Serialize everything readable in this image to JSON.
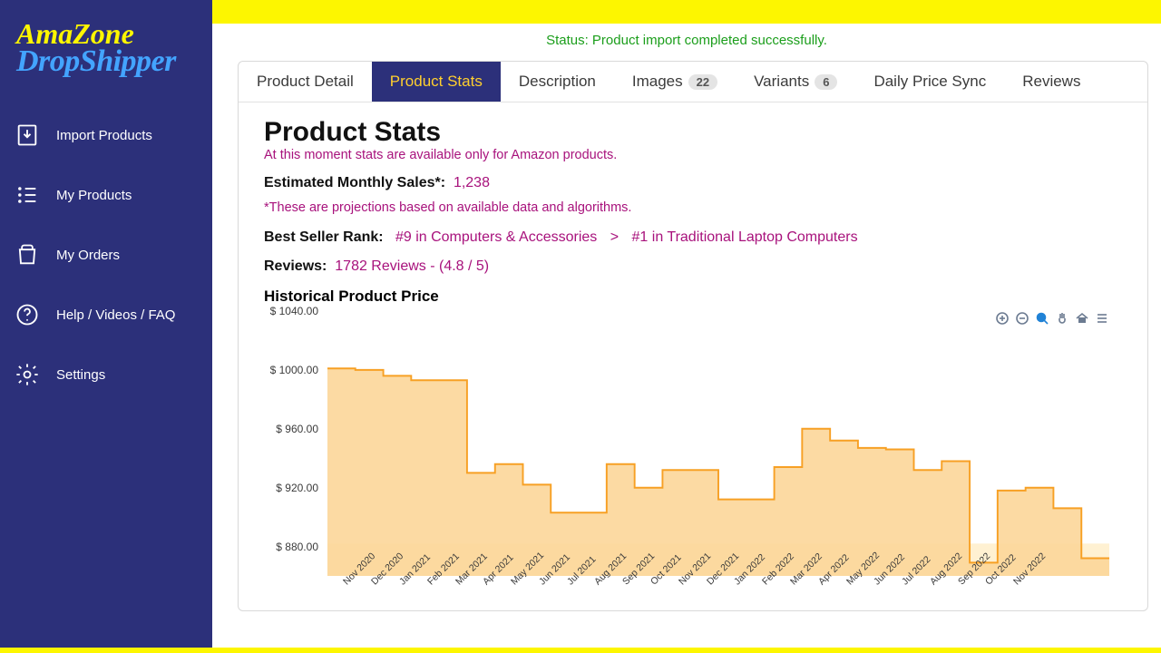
{
  "logo": {
    "line1": "AmaZone",
    "line2": "DropShipper"
  },
  "topright": "",
  "sidebar": {
    "items": [
      {
        "label": "Import Products",
        "icon": "import"
      },
      {
        "label": "My Products",
        "icon": "products"
      },
      {
        "label": "My Orders",
        "icon": "orders"
      },
      {
        "label": "Help / Videos / FAQ",
        "icon": "help"
      },
      {
        "label": "Settings",
        "icon": "settings"
      }
    ]
  },
  "status": "Status: Product import completed successfully.",
  "tabs": [
    {
      "label": "Product Detail",
      "badge": null,
      "active": false
    },
    {
      "label": "Product Stats",
      "badge": null,
      "active": true
    },
    {
      "label": "Description",
      "badge": null,
      "active": false
    },
    {
      "label": "Images",
      "badge": "22",
      "active": false
    },
    {
      "label": "Variants",
      "badge": "6",
      "active": false
    },
    {
      "label": "Daily Price Sync",
      "badge": null,
      "active": false
    },
    {
      "label": "Reviews",
      "badge": null,
      "active": false
    }
  ],
  "stats": {
    "title": "Product Stats",
    "note": "At this moment stats are available only for Amazon products.",
    "monthly_label": "Estimated Monthly Sales*:",
    "monthly_value": "1,238",
    "monthly_footnote": "*These are projections based on available data and algorithms.",
    "rank_label": "Best Seller Rank:",
    "rank_links": [
      "#9 in Computers & Accessories",
      "#1 in Traditional Laptop Computers"
    ],
    "reviews_label": "Reviews:",
    "reviews_value": "1782 Reviews - (4.8 / 5)",
    "chart_title": "Historical Product Price"
  },
  "chart": {
    "type": "area-step",
    "stroke_color": "#f7a024",
    "fill_color": "#fcd699",
    "fill_opacity": 0.9,
    "ground_fill": "#fff1d2",
    "stroke_width": 2,
    "ylim": [
      860,
      1040
    ],
    "ytick_step": 40,
    "y_prefix": "$ ",
    "y_decimals": 2,
    "categories": [
      "Nov 2020",
      "Dec 2020",
      "Jan 2021",
      "Feb 2021",
      "Mar 2021",
      "Apr 2021",
      "May 2021",
      "Jun 2021",
      "Jul 2021",
      "Aug 2021",
      "Sep 2021",
      "Oct 2021",
      "Nov 2021",
      "Dec 2021",
      "Jan 2022",
      "Feb 2022",
      "Mar 2022",
      "Apr 2022",
      "May 2022",
      "Jun 2022",
      "Jul 2022",
      "Aug 2022",
      "Sep 2022",
      "Oct 2022",
      "Nov 2022"
    ],
    "values": [
      1001,
      1000,
      996,
      993,
      993,
      930,
      936,
      922,
      903,
      903,
      936,
      920,
      932,
      932,
      912,
      912,
      934,
      960,
      952,
      947,
      946,
      932,
      938,
      869,
      918
    ],
    "trailing": [
      920,
      906,
      872
    ]
  },
  "toolbar_icons": [
    "plus",
    "minus",
    "zoom",
    "pan",
    "home",
    "menu"
  ]
}
